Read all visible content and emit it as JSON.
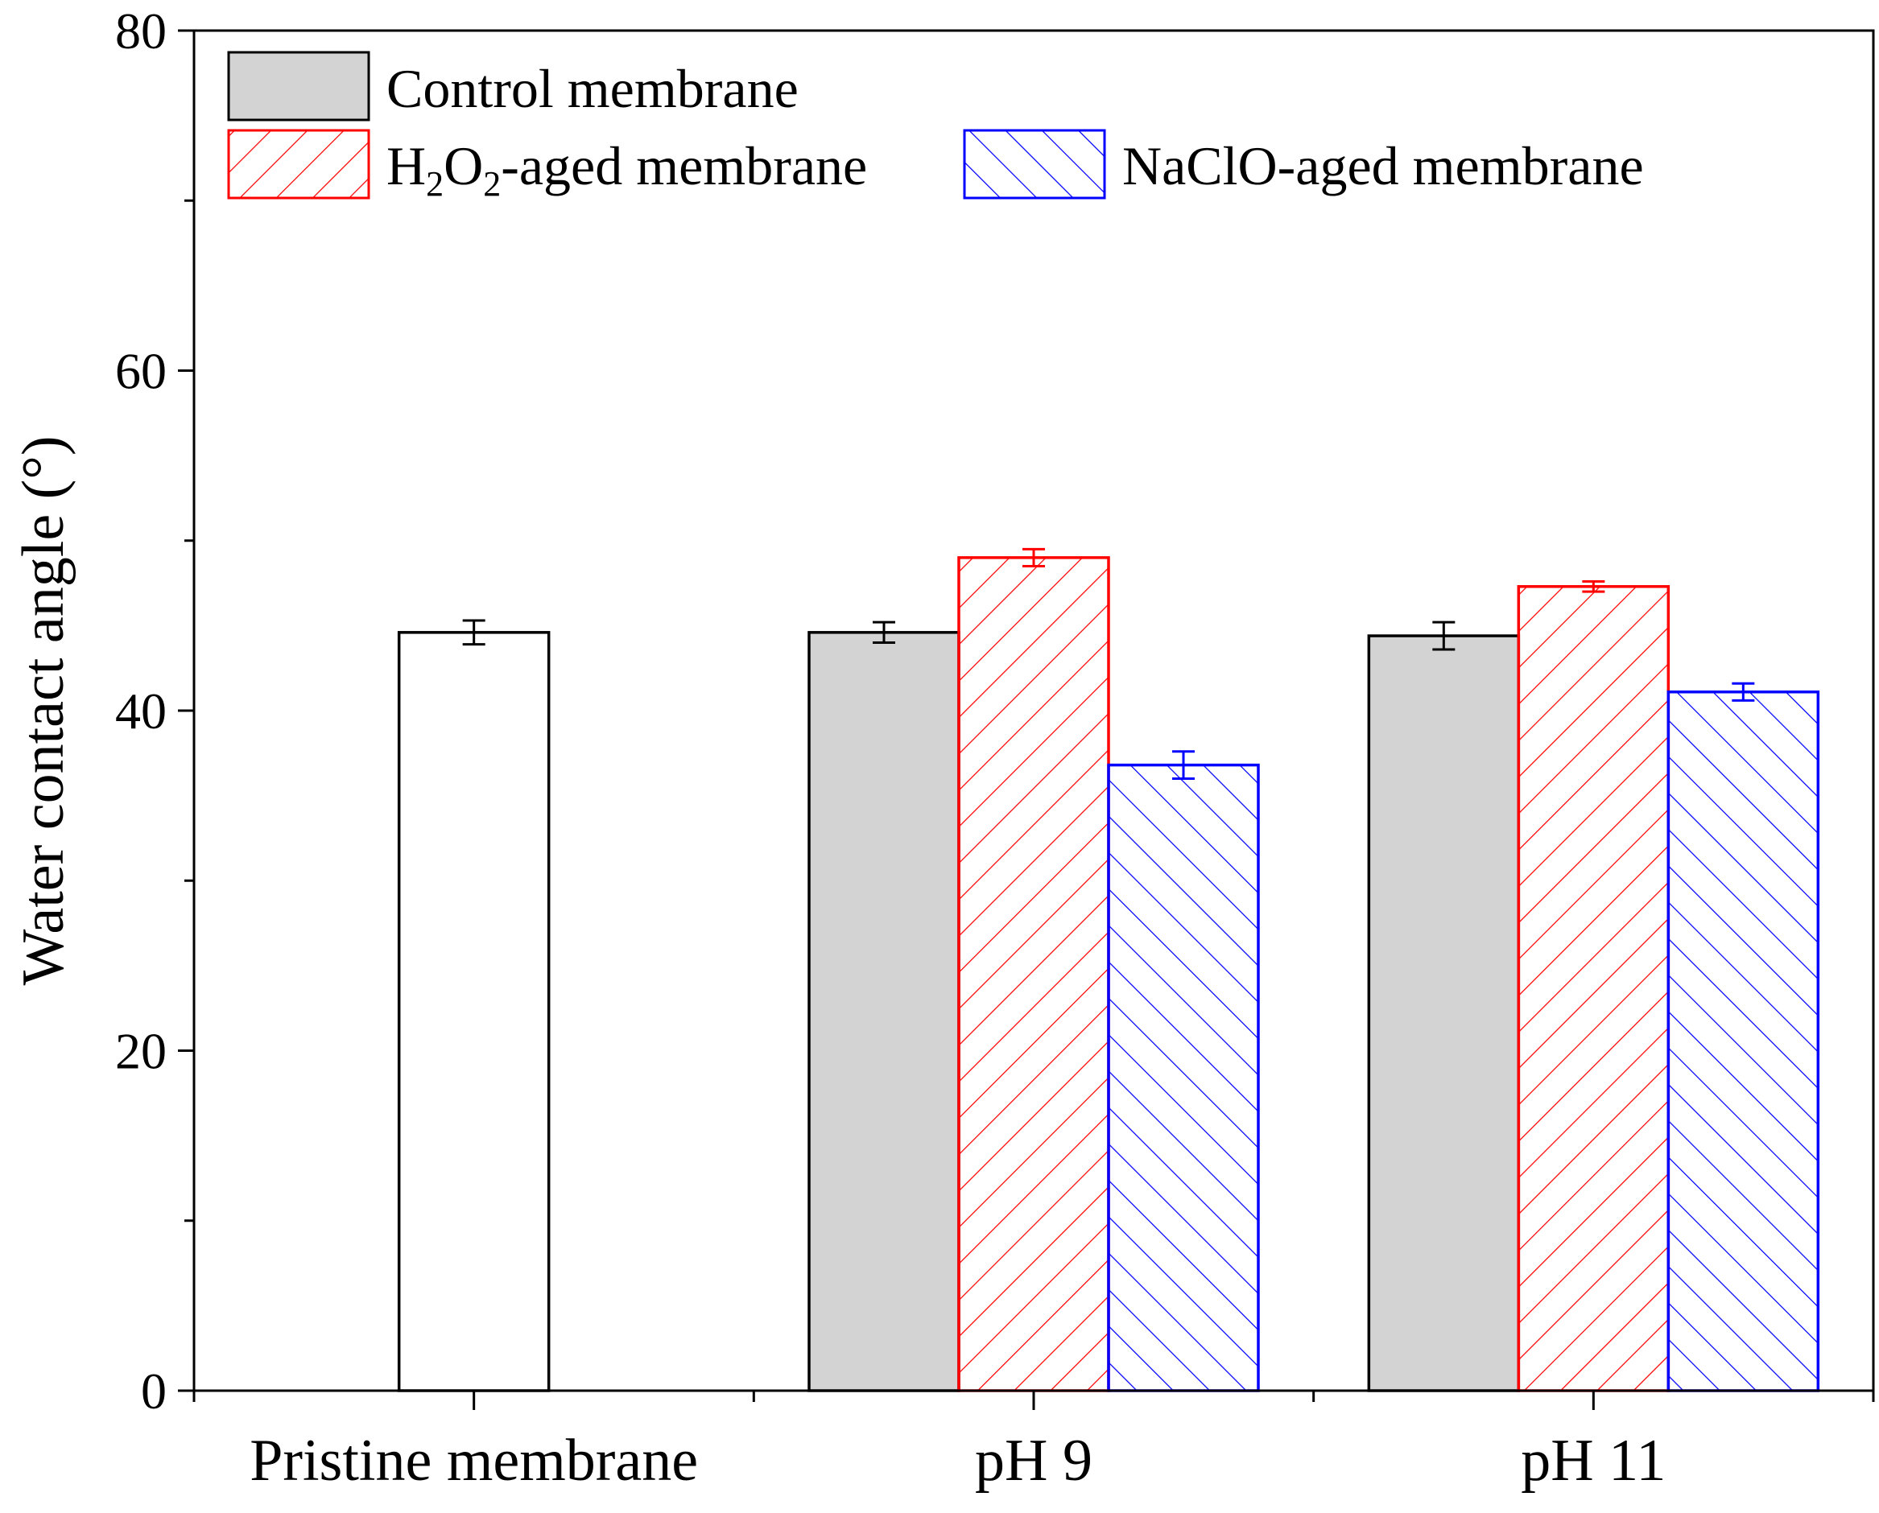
{
  "chart_data": {
    "type": "bar",
    "ylabel": "Water contact angle (°)",
    "ylim": [
      0,
      80
    ],
    "y_major_ticks": [
      0,
      20,
      40,
      60,
      80
    ],
    "y_minor_step": 10,
    "categories": [
      "Pristine membrane",
      "pH 9",
      "pH 11"
    ],
    "pristine": {
      "name": "Pristine membrane",
      "value": 44.6,
      "error": 0.7,
      "color": "#000000",
      "fill": "#ffffff"
    },
    "series": [
      {
        "key": "control",
        "name": "Control membrane",
        "color": "#000000",
        "fill": "#d3d3d3",
        "pattern": "solid",
        "values": [
          null,
          44.6,
          44.4
        ],
        "errors": [
          null,
          0.6,
          0.8
        ]
      },
      {
        "key": "h2o2",
        "name": "H2O2-aged membrane",
        "color": "#ff0000",
        "fill": "#ffffff",
        "pattern": "forward-hatch",
        "values": [
          null,
          49.0,
          47.3
        ],
        "errors": [
          null,
          0.5,
          0.3
        ]
      },
      {
        "key": "naclo",
        "name": "NaClO-aged membrane",
        "color": "#0000ff",
        "fill": "#ffffff",
        "pattern": "back-hatch",
        "values": [
          null,
          36.8,
          41.1
        ],
        "errors": [
          null,
          0.8,
          0.5
        ]
      }
    ],
    "legend": {
      "placement": "top-left",
      "control_label": "Control membrane",
      "h2o2_parts": {
        "base1": "H",
        "sub1": "2",
        "base2": "O",
        "sub2": "2",
        "rest": "-aged membrane"
      },
      "naclo_label": "NaClO-aged membrane"
    }
  }
}
